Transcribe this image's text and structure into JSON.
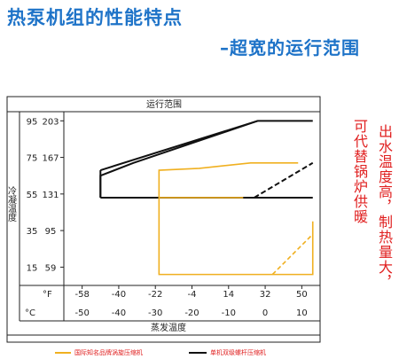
{
  "slide": {
    "title": "热泵机组的性能特点",
    "subtitle": "–超宽的运行范围",
    "side_text_1": "出水温度高，制热量大，",
    "side_text_2": "可代替锅炉供暖"
  },
  "chart_data": {
    "type": "line",
    "title": "运行范围",
    "xlabel": "蒸发温度",
    "ylabel": "冷凝温度",
    "x_unit_primary": "°F",
    "x_unit_secondary": "°C",
    "x_ticks_f": [
      "-58",
      "-40",
      "-22",
      "-4",
      "14",
      "32",
      "50"
    ],
    "x_ticks_c": [
      "-50",
      "-40",
      "-30",
      "-20",
      "-10",
      "0",
      "10"
    ],
    "y_ticks_c": [
      "15",
      "35",
      "55",
      "75",
      "95"
    ],
    "y_ticks_f": [
      "59",
      "95",
      "131",
      "167",
      "203"
    ],
    "xlim": [
      -55,
      15
    ],
    "ylim": [
      5,
      100
    ],
    "grid": false,
    "legend_position": "bottom",
    "series": [
      {
        "name": "国际知名品牌涡旋压缩机",
        "color": "#f0b020",
        "x": [
          -29,
          -29,
          13,
          13,
          -30,
          -30,
          0,
          13
        ],
        "y": [
          11,
          68,
          72,
          53,
          53,
          68,
          68,
          11
        ],
        "path": [
          [
            -29,
            11
          ],
          [
            13,
            11
          ],
          [
            13,
            39
          ],
          [
            2,
            30
          ],
          [
            -1,
            30
          ],
          [
            -1,
            11
          ]
        ],
        "outline": [
          [
            -29,
            11
          ],
          [
            -29,
            68
          ],
          [
            -4,
            72
          ],
          [
            9,
            72
          ],
          [
            -7,
            53
          ],
          [
            -30,
            53
          ]
        ]
      },
      {
        "name": "单机双级螺杆压缩机",
        "color": "#111111",
        "x": [
          -45,
          -45,
          -45,
          -2,
          8,
          8,
          13,
          13,
          -45
        ],
        "y": [
          53,
          65,
          65,
          95,
          95,
          72,
          72,
          53,
          53
        ],
        "path": [
          [
            -45,
            53
          ],
          [
            -45,
            65
          ],
          [
            -36,
            72
          ],
          [
            -2,
            95
          ],
          [
            13,
            95
          ]
        ],
        "outline": [
          [
            -45,
            53
          ],
          [
            13,
            53
          ],
          [
            13,
            80
          ],
          [
            -45,
            53
          ]
        ]
      }
    ]
  }
}
